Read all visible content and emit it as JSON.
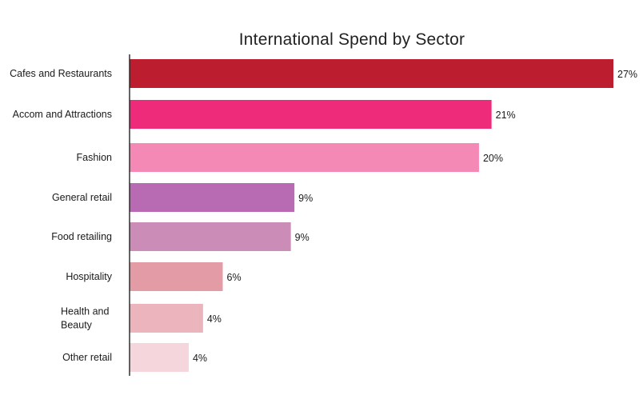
{
  "chart_data": {
    "type": "bar",
    "orientation": "horizontal",
    "title": "International Spend by Sector",
    "categories": [
      "Cafes and Restaurants",
      "Accom and Attractions",
      "Fashion",
      "General retail",
      "Food retailing",
      "Hospitality",
      "Health and Beauty",
      "Other retail"
    ],
    "category_lines": [
      [
        "Cafes and Restaurants"
      ],
      [
        "Accom and Attractions"
      ],
      [
        "Fashion"
      ],
      [
        "General retail"
      ],
      [
        "Food retailing"
      ],
      [
        "Hospitality"
      ],
      [
        "Health and",
        "Beauty"
      ],
      [
        "Other retail"
      ]
    ],
    "values": [
      27,
      21,
      20,
      9,
      9,
      6,
      4,
      4
    ],
    "value_labels": [
      "27%",
      "21%",
      "20%",
      "9%",
      "9%",
      "6%",
      "4%",
      "4%"
    ],
    "bar_lengths_pct_scale": [
      27,
      20.2,
      19.5,
      9.2,
      9.0,
      5.2,
      4.1,
      3.3
    ],
    "colors": [
      "#bd1e2f",
      "#ee2b7a",
      "#f589b6",
      "#b86ab3",
      "#cb8db8",
      "#e39ca5",
      "#ecb4bd",
      "#f4d6dc"
    ],
    "xlabel": "",
    "ylabel": "",
    "grid": false,
    "legend": "none"
  }
}
